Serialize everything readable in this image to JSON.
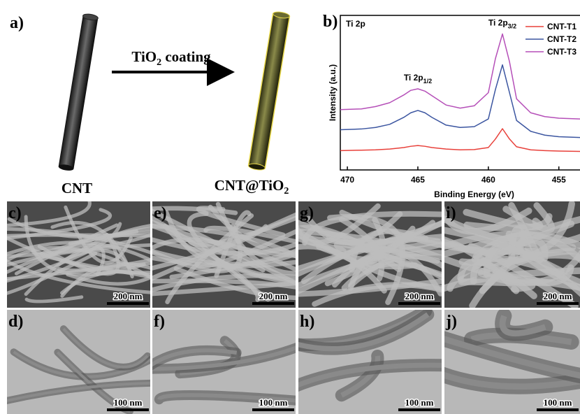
{
  "figure": {
    "panel_a": {
      "label": "a)",
      "left_caption": "CNT",
      "arrow_caption": {
        "text": "TiO",
        "sub": "2",
        "rest": " coating"
      },
      "right_caption": {
        "text": "CNT@TiO",
        "sub": "2"
      }
    },
    "micrographs": [
      [
        {
          "label": "c)",
          "scale": "200 nm"
        },
        {
          "label": "e)",
          "scale": "200 nm"
        },
        {
          "label": "g)",
          "scale": "200 nm"
        },
        {
          "label": "i)",
          "scale": "200 nm"
        }
      ],
      [
        {
          "label": "d)",
          "scale": "100 nm"
        },
        {
          "label": "f)",
          "scale": "100 nm"
        },
        {
          "label": "h)",
          "scale": "100 nm"
        },
        {
          "label": "j)",
          "scale": "100 nm"
        }
      ]
    ]
  },
  "chart_data": {
    "type": "line",
    "panel_label": "b)",
    "corner_label": "Ti 2p",
    "annotations": [
      {
        "text": "Ti 2p",
        "sub": "1/2",
        "x": 465
      },
      {
        "text": "Ti 2p",
        "sub": "3/2",
        "x": 459
      }
    ],
    "x_label": "Binding Energy (eV)",
    "y_label": "Intensity (a.u.)",
    "x": [
      470.5,
      469,
      468,
      467,
      466,
      465.5,
      465,
      464.5,
      464,
      463,
      462,
      461,
      460,
      459.5,
      459,
      458.5,
      458,
      457,
      456,
      455,
      453.5
    ],
    "series": [
      {
        "name": "CNT-T1",
        "color": "#e8403a",
        "values": [
          12.5,
          12.8,
          13,
          13.5,
          14.5,
          15.3,
          15.8,
          15.3,
          14.5,
          13.5,
          13,
          13.2,
          14.5,
          20,
          26.7,
          20,
          15,
          13,
          12.5,
          12.2,
          12
        ]
      },
      {
        "name": "CNT-T2",
        "color": "#3b55a0",
        "values": [
          26,
          26.5,
          27.5,
          29.5,
          34,
          37,
          38.5,
          37,
          34,
          29,
          27.5,
          28,
          33,
          52,
          68,
          50,
          32,
          25,
          22.5,
          21.5,
          21
        ]
      },
      {
        "name": "CNT-T3",
        "color": "#b54fb8",
        "values": [
          39,
          39.5,
          41,
          43.5,
          48.5,
          51.5,
          52.5,
          51,
          48,
          42,
          40,
          41.5,
          50,
          72,
          88,
          70,
          46,
          37,
          34.5,
          33.5,
          33
        ]
      }
    ],
    "xlim": [
      470.5,
      453.5
    ],
    "ylim": [
      0,
      100
    ],
    "xticks": [
      470,
      465,
      460,
      455
    ],
    "legend": "upper right"
  }
}
